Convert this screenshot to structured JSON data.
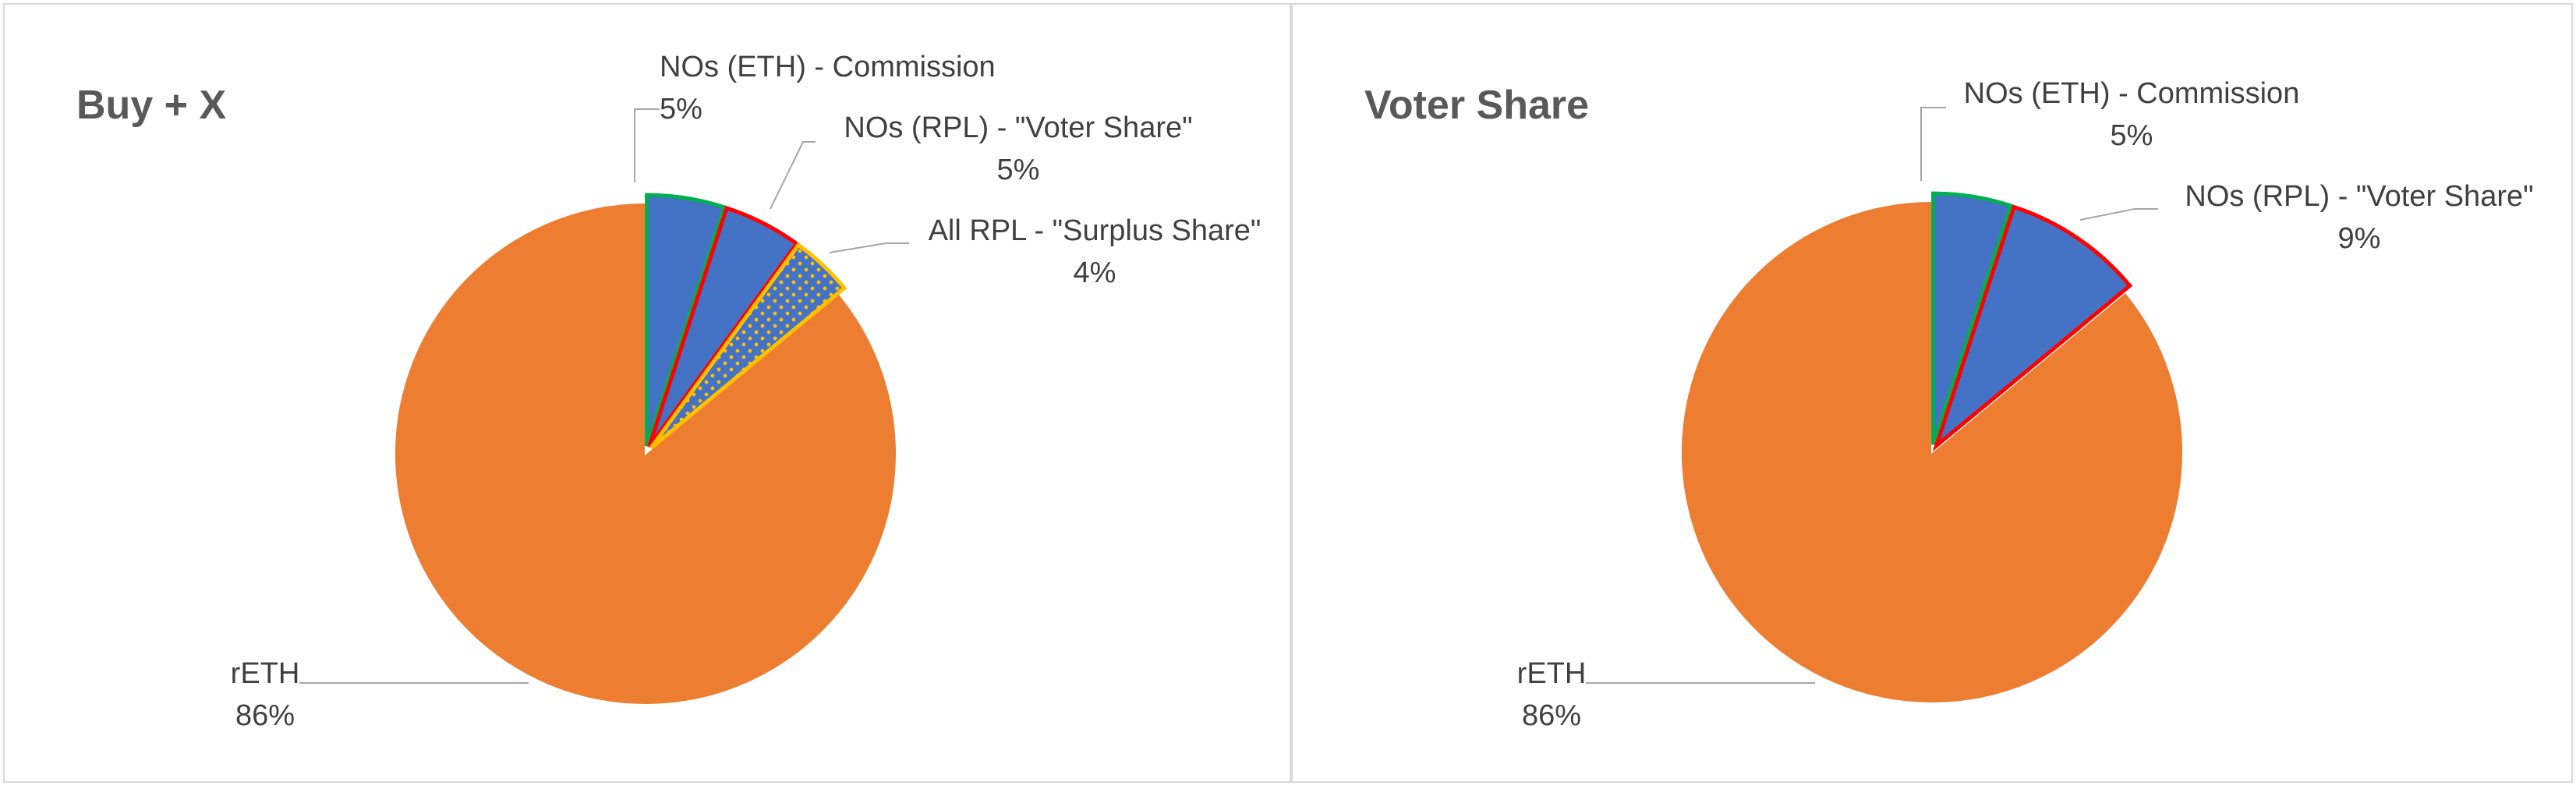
{
  "chart_data": [
    {
      "type": "pie",
      "title": "Buy + X",
      "categories": [
        "NOs (ETH) - Commission",
        "NOs (RPL) - \"Voter Share\"",
        "All RPL - \"Surplus Share\"",
        "rETH"
      ],
      "values": [
        5,
        5,
        4,
        86
      ],
      "value_labels": [
        "5%",
        "5%",
        "4%",
        "86%"
      ],
      "start_angle_deg": 0,
      "direction": "clockwise",
      "exploded_slices": [
        "NOs (ETH) - Commission",
        "NOs (RPL) - \"Voter Share\"",
        "All RPL - \"Surplus Share\""
      ],
      "slice_styles": [
        {
          "fill": "#4472c4",
          "outline": "#00b050",
          "pattern": "none"
        },
        {
          "fill": "#4472c4",
          "outline": "#ff0000",
          "pattern": "none"
        },
        {
          "fill": "#4472c4",
          "outline": "#ffc000",
          "pattern": "dots"
        },
        {
          "fill": "#ed7d31",
          "outline": "#ffffff",
          "pattern": "none"
        }
      ],
      "legend": "none"
    },
    {
      "type": "pie",
      "title": "Voter Share",
      "categories": [
        "NOs (ETH) - Commission",
        "NOs (RPL) - \"Voter Share\"",
        "rETH"
      ],
      "values": [
        5,
        9,
        86
      ],
      "value_labels": [
        "5%",
        "9%",
        "86%"
      ],
      "start_angle_deg": 0,
      "direction": "clockwise",
      "exploded_slices": [
        "NOs (ETH) - Commission",
        "NOs (RPL) - \"Voter Share\""
      ],
      "slice_styles": [
        {
          "fill": "#4472c4",
          "outline": "#00b050",
          "pattern": "none"
        },
        {
          "fill": "#4472c4",
          "outline": "#ff0000",
          "pattern": "none"
        },
        {
          "fill": "#ed7d31",
          "outline": "#ffffff",
          "pattern": "none"
        }
      ],
      "legend": "none"
    }
  ]
}
